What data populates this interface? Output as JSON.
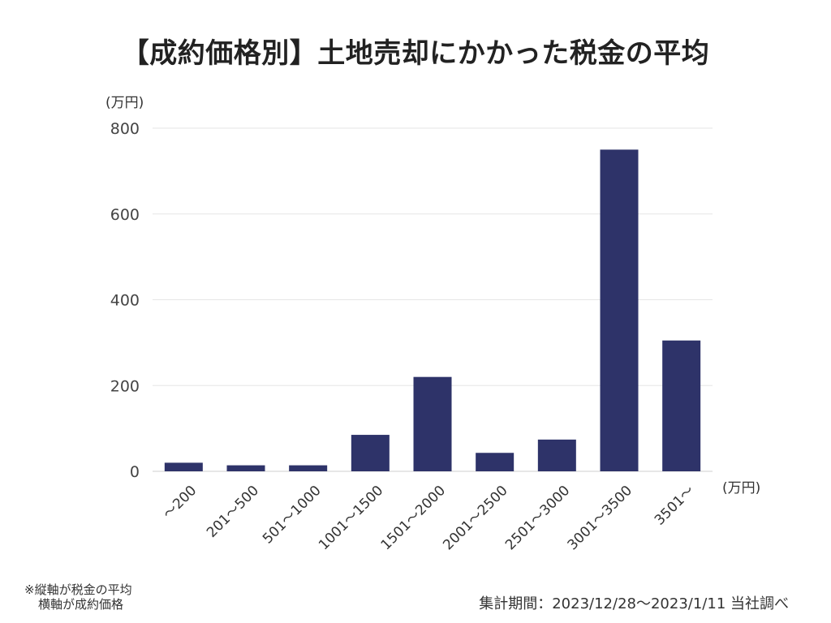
{
  "title": "【成約価格別】土地売却にかかった税金の平均",
  "y_unit": "(万円)",
  "x_unit": "(万円)",
  "note": {
    "line1": "※縦軸が税金の平均",
    "line2": "横軸が成約価格"
  },
  "source": "集計期間：2023/12/28〜2023/1/11 当社調べ",
  "colors": {
    "bar": "#2e3369",
    "grid": "#e6e6e6"
  },
  "chart_data": {
    "type": "bar",
    "title": "【成約価格別】土地売却にかかった税金の平均",
    "xlabel": "(万円)",
    "ylabel": "(万円)",
    "categories": [
      "～200",
      "201～500",
      "501～1000",
      "1001～1500",
      "1501～2000",
      "2001～2500",
      "2501～3000",
      "3001～3500",
      "3501～"
    ],
    "values": [
      20,
      14,
      14,
      85,
      220,
      43,
      74,
      750,
      305
    ],
    "ylim": [
      0,
      800
    ],
    "yticks": [
      0,
      200,
      400,
      600,
      800
    ],
    "grid": true
  }
}
